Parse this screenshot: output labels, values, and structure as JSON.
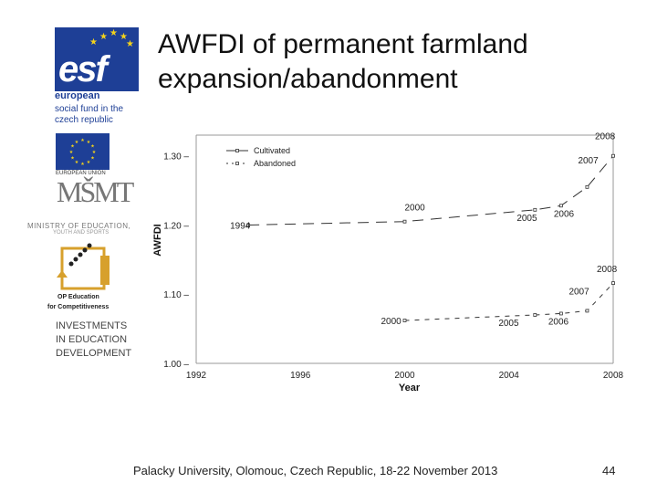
{
  "slide": {
    "title_line1": "AWFDI of permanent farmland",
    "title_line2": "expansion/abandonment",
    "footer": "Palacky University, Olomouc, Czech Republic, 18-22 November 2013",
    "page_number": "44"
  },
  "sidebar": {
    "esf_word": "esf",
    "esf_line1": "european",
    "esf_line2": "social fund in the",
    "esf_line3": "czech republic",
    "eu_caption": "EUROPEAN UNION",
    "msmt_mark": "MŠMT",
    "msmt_line1": "MINISTRY OF EDUCATION,",
    "msmt_line2": "YOUTH AND SPORTS",
    "op_line1": "OP Education",
    "op_line2": "for Competitiveness",
    "invest_line1": "INVESTMENTS",
    "invest_line2": "IN EDUCATION",
    "invest_line3": "DEVELOPMENT"
  },
  "colors": {
    "eu_blue": "#1e3f96",
    "eu_yellow": "#f3d21b",
    "op_gold": "#d7a02c",
    "line_color": "#333333"
  },
  "chart_data": {
    "type": "line",
    "xlabel": "Year",
    "ylabel": "AWFDI",
    "xlim": [
      1992,
      2008
    ],
    "ylim": [
      1.0,
      1.33
    ],
    "x_ticks": [
      "1992",
      "1996",
      "2000",
      "2004",
      "2008"
    ],
    "y_ticks": [
      "1.00",
      "1.10",
      "1.20",
      "1.30"
    ],
    "series": [
      {
        "name": "Cultivated",
        "points": [
          {
            "x": 1994,
            "y": 1.2,
            "label": "1994"
          },
          {
            "x": 2000,
            "y": 1.205,
            "label": "2000"
          },
          {
            "x": 2005,
            "y": 1.222,
            "label": "2005"
          },
          {
            "x": 2006,
            "y": 1.228,
            "label": "2006"
          },
          {
            "x": 2007,
            "y": 1.255,
            "label": "2007"
          },
          {
            "x": 2008,
            "y": 1.3,
            "label": "2008"
          }
        ]
      },
      {
        "name": "Abandoned",
        "points": [
          {
            "x": 2000,
            "y": 1.062,
            "label": "2000"
          },
          {
            "x": 2005,
            "y": 1.07,
            "label": "2005"
          },
          {
            "x": 2006,
            "y": 1.072,
            "label": "2006"
          },
          {
            "x": 2007,
            "y": 1.076,
            "label": "2007"
          },
          {
            "x": 2008,
            "y": 1.116,
            "label": "2008"
          }
        ]
      }
    ],
    "legend_position": "top-left",
    "grid": false
  }
}
